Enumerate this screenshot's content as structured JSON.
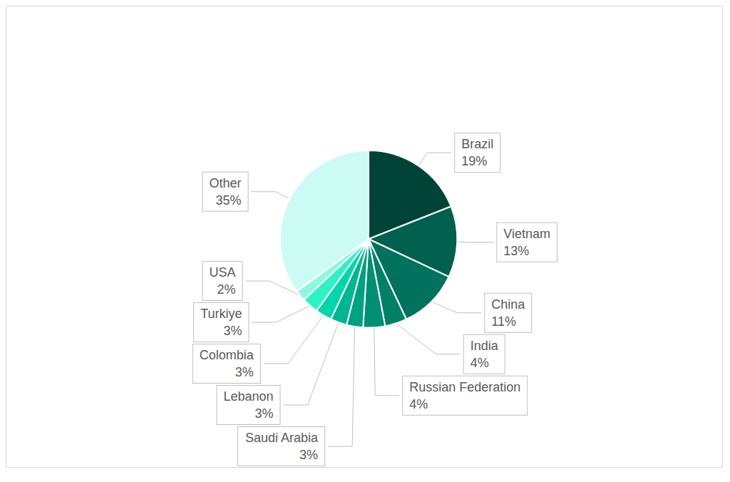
{
  "chart_data": {
    "type": "pie",
    "categories": [
      "Brazil",
      "Vietnam",
      "China",
      "India",
      "Russian Federation",
      "Saudi Arabia",
      "Lebanon",
      "Colombia",
      "Turkiye",
      "USA",
      "Other"
    ],
    "values": [
      19,
      13,
      11,
      4,
      4,
      3,
      3,
      3,
      3,
      2,
      35
    ],
    "value_labels": [
      "19%",
      "13%",
      "11%",
      "4%",
      "4%",
      "3%",
      "3%",
      "3%",
      "3%",
      "2%",
      "35%"
    ],
    "colors": [
      "#004438",
      "#00614f",
      "#00725d",
      "#008069",
      "#008f74",
      "#00a083",
      "#00b593",
      "#00d6ab",
      "#2ff2c4",
      "#8ff7df",
      "#ccfbf3"
    ],
    "data_labels": true
  }
}
